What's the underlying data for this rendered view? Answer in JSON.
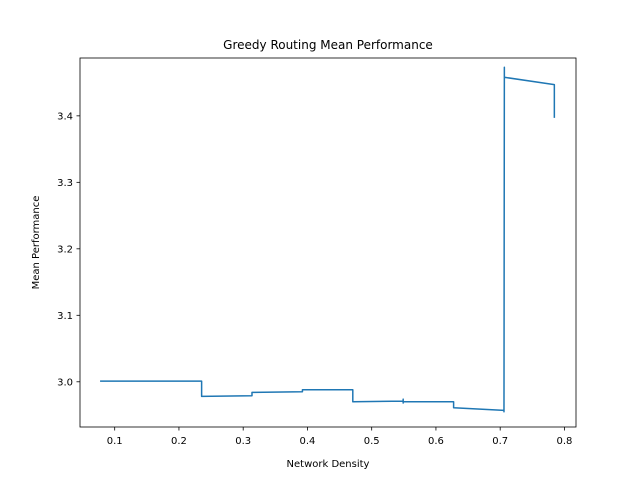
{
  "chart_data": {
    "type": "line",
    "title": "Greedy Routing Mean Performance",
    "xlabel": "Network Density",
    "ylabel": "Mean Performance",
    "xlim": [
      0.046,
      0.818
    ],
    "ylim": [
      2.932,
      3.487
    ],
    "xticks": [
      0.1,
      0.2,
      0.3,
      0.4,
      0.5,
      0.6,
      0.7,
      0.8
    ],
    "xtick_labels": [
      "0.1",
      "0.2",
      "0.3",
      "0.4",
      "0.5",
      "0.6",
      "0.7",
      "0.8"
    ],
    "yticks": [
      3.0,
      3.1,
      3.2,
      3.3,
      3.4
    ],
    "ytick_labels": [
      "3.0",
      "3.1",
      "3.2",
      "3.3",
      "3.4"
    ],
    "grid": false,
    "legend": "none",
    "series": [
      {
        "color": "#1f77b4",
        "x": [
          0.0784,
          0.2353,
          0.2353,
          0.3137,
          0.3137,
          0.3922,
          0.3922,
          0.4706,
          0.4706,
          0.549,
          0.549,
          0.549,
          0.549,
          0.6275,
          0.6275,
          0.7059,
          0.7059,
          0.7065,
          0.7065,
          0.7843,
          0.7843
        ],
        "y": [
          3.001,
          3.001,
          2.978,
          2.979,
          2.984,
          2.985,
          2.988,
          2.988,
          2.97,
          2.971,
          2.968,
          2.974,
          2.97,
          2.97,
          2.961,
          2.957,
          2.955,
          3.473,
          3.458,
          3.447,
          3.398
        ]
      }
    ]
  }
}
